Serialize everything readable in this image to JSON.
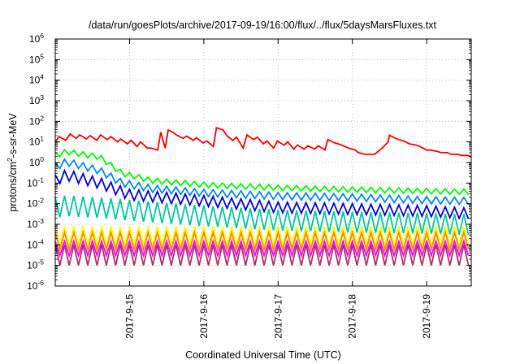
{
  "chart_data": {
    "type": "line",
    "title": "/data/run/goesPlots/archive/2017-09-19/16:00/flux/../flux/5daysMarsFluxes.txt",
    "xlabel": "Coordinated Universal Time (UTC)",
    "ylabel_main": "protons/cm",
    "ylabel_sup": "2",
    "ylabel_tail": "-s-sr-MeV",
    "yscale": "log",
    "ylim": [
      1e-06,
      1000000.0
    ],
    "xlim": [
      0,
      5.6
    ],
    "x_ticks": [
      {
        "x": 1,
        "label": "2017-9-15"
      },
      {
        "x": 2,
        "label": "2017-9-16"
      },
      {
        "x": 3,
        "label": "2017-9-17"
      },
      {
        "x": 4,
        "label": "2017-9-18"
      },
      {
        "x": 5,
        "label": "2017-9-19"
      }
    ],
    "y_ticks": [
      {
        "exp": -6,
        "label": "10",
        "sup": "-6"
      },
      {
        "exp": -5,
        "label": "10",
        "sup": "-5"
      },
      {
        "exp": -4,
        "label": "10",
        "sup": "-4"
      },
      {
        "exp": -3,
        "label": "10",
        "sup": "-3"
      },
      {
        "exp": -2,
        "label": "10",
        "sup": "-2"
      },
      {
        "exp": -1,
        "label": "10",
        "sup": "-1"
      },
      {
        "exp": 0,
        "label": "10",
        "sup": "0"
      },
      {
        "exp": 1,
        "label": "10",
        "sup": "1"
      },
      {
        "exp": 2,
        "label": "10",
        "sup": "2"
      },
      {
        "exp": 3,
        "label": "10",
        "sup": "3"
      },
      {
        "exp": 4,
        "label": "10",
        "sup": "4"
      },
      {
        "exp": 5,
        "label": "10",
        "sup": "5"
      },
      {
        "exp": 6,
        "label": "10",
        "sup": "6"
      }
    ],
    "grid": true,
    "series": [
      {
        "color": "#ff0000",
        "x": [
          0,
          0.05,
          0.14,
          0.2,
          0.28,
          0.33,
          0.42,
          0.47,
          0.56,
          0.61,
          0.7,
          0.75,
          0.84,
          0.88,
          0.97,
          1.02,
          1.1,
          1.15,
          1.24,
          1.29,
          1.38,
          1.42,
          1.48,
          1.52,
          1.58,
          1.63,
          1.72,
          1.77,
          1.86,
          1.9,
          1.99,
          2.04,
          2.13,
          2.17,
          2.26,
          2.31,
          2.39,
          2.44,
          2.53,
          2.58,
          2.67,
          2.72,
          2.8,
          2.85,
          2.94,
          2.99,
          3.08,
          3.13,
          3.21,
          3.26,
          3.35,
          3.4,
          3.49,
          3.54,
          3.63,
          3.67,
          3.76,
          3.81,
          3.9,
          3.95,
          4.04,
          4.08,
          4.17,
          4.22,
          4.3,
          4.4,
          4.48,
          4.5,
          4.58,
          4.63,
          4.72,
          4.77,
          4.86,
          4.91,
          5.0,
          5.05,
          5.14,
          5.19,
          5.28,
          5.33,
          5.42,
          5.47,
          5.56,
          5.6
        ],
        "y": [
          10,
          18,
          12,
          24,
          15,
          22,
          14,
          20,
          12,
          22,
          13,
          18,
          10,
          14,
          8,
          12,
          6,
          10,
          5,
          5,
          4,
          30,
          5,
          38,
          30,
          22,
          15,
          19,
          12,
          16,
          9,
          11,
          6,
          49,
          38,
          20,
          12,
          17,
          5,
          22,
          13,
          17,
          8,
          11,
          5,
          11,
          7,
          10,
          4.5,
          7,
          4.5,
          6.5,
          4.5,
          6.5,
          4,
          13,
          9,
          8,
          6,
          5,
          4,
          3,
          2.5,
          2.5,
          2.5,
          5,
          10,
          21,
          15,
          13,
          10,
          8,
          7,
          6,
          4,
          4,
          3.5,
          3,
          3,
          2.5,
          2.5,
          2.2,
          2.2,
          1.8
        ]
      },
      {
        "color": "#00ff00",
        "base": [
          [
            0,
            3
          ],
          [
            0.15,
            4.5
          ],
          [
            0.6,
            2.5
          ],
          [
            0.9,
            0.4
          ],
          [
            1.3,
            0.18
          ],
          [
            2,
            0.11
          ],
          [
            3,
            0.08
          ],
          [
            4,
            0.065
          ],
          [
            5,
            0.055
          ],
          [
            5.6,
            0.05
          ]
        ],
        "dip": 0.55
      },
      {
        "color": "#0088ff",
        "base": [
          [
            0,
            0.9
          ],
          [
            0.15,
            1.6
          ],
          [
            0.6,
            0.6
          ],
          [
            0.9,
            0.15
          ],
          [
            1.3,
            0.08
          ],
          [
            2,
            0.05
          ],
          [
            3,
            0.035
          ],
          [
            4,
            0.03
          ],
          [
            5,
            0.022
          ],
          [
            5.6,
            0.02
          ]
        ],
        "dip": 0.45
      },
      {
        "color": "#0000dd",
        "base": [
          [
            0,
            0.25
          ],
          [
            0.15,
            0.45
          ],
          [
            0.6,
            0.18
          ],
          [
            1,
            0.05
          ],
          [
            2,
            0.025
          ],
          [
            3,
            0.012
          ],
          [
            4,
            0.01
          ],
          [
            5,
            0.008
          ],
          [
            5.6,
            0.006
          ]
        ],
        "dip": 0.3
      },
      {
        "color": "#00c8a0",
        "base": [
          [
            0,
            0.02
          ],
          [
            0.15,
            0.025
          ],
          [
            0.6,
            0.02
          ],
          [
            1,
            0.015
          ],
          [
            2,
            0.008
          ],
          [
            3,
            0.005
          ],
          [
            4,
            0.004
          ],
          [
            5,
            0.0035
          ],
          [
            5.6,
            0.003
          ]
        ],
        "dip": 0.1
      },
      {
        "color": "#ffff00",
        "base": [
          [
            0,
            0.0008
          ],
          [
            5.6,
            0.0008
          ]
        ],
        "dip": 0.12
      },
      {
        "color": "#ff8800",
        "base": [
          [
            0,
            0.0004
          ],
          [
            5.6,
            0.0004
          ]
        ],
        "dip": 0.15
      },
      {
        "color": "#ff00ff",
        "base": [
          [
            0,
            0.00015
          ],
          [
            5.6,
            0.00015
          ]
        ],
        "dip": 0.2
      },
      {
        "color": "#aa3366",
        "base": [
          [
            0,
            0.0001
          ],
          [
            5.6,
            0.0001
          ]
        ],
        "dip": 0.1
      }
    ]
  }
}
